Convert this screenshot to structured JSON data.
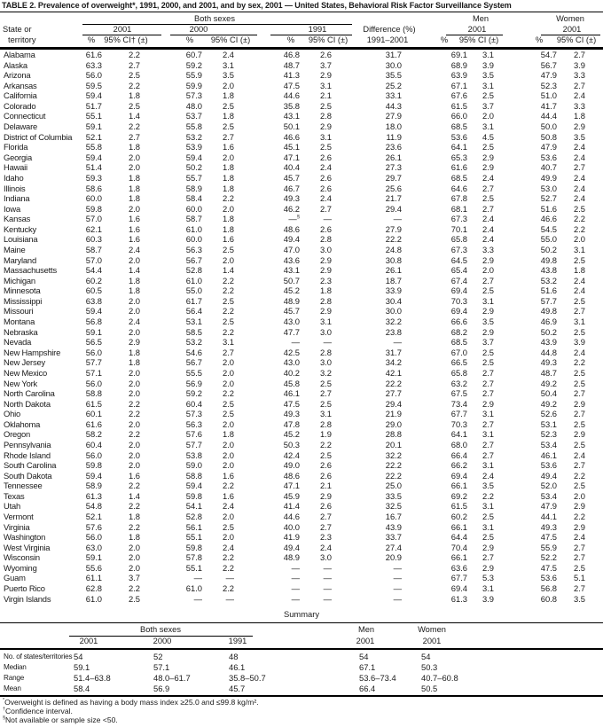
{
  "title": "TABLE 2. Prevalence of overweight*, 1991, 2000, and 2001, and by sex, 2001 — United States, Behavioral Risk Factor Surveillance System",
  "header": {
    "group_both": "Both sexes",
    "group_men": "Men",
    "group_women": "Women",
    "state_line1": "State or",
    "state_line2": "territory",
    "year_2001": "2001",
    "year_2000": "2000",
    "year_1991": "1991",
    "year_men": "2001",
    "year_women": "2001",
    "pct": "%",
    "ci_first": "95% CI† (±)",
    "ci": "95% CI (±)",
    "diff_line1": "Difference (%)",
    "diff_line2": "1991–2001"
  },
  "rows": [
    [
      "Alabama",
      "61.6",
      "2.2",
      "60.7",
      "2.4",
      "46.8",
      "2.6",
      "31.7",
      "69.1",
      "3.1",
      "54.7",
      "2.7"
    ],
    [
      "Alaska",
      "63.3",
      "2.7",
      "59.2",
      "3.1",
      "48.7",
      "3.7",
      "30.0",
      "68.9",
      "3.9",
      "56.7",
      "3.9"
    ],
    [
      "Arizona",
      "56.0",
      "2.5",
      "55.9",
      "3.5",
      "41.3",
      "2.9",
      "35.5",
      "63.9",
      "3.5",
      "47.9",
      "3.3"
    ],
    [
      "Arkansas",
      "59.5",
      "2.2",
      "59.9",
      "2.0",
      "47.5",
      "3.1",
      "25.2",
      "67.1",
      "3.1",
      "52.3",
      "2.7"
    ],
    [
      "California",
      "59.4",
      "1.8",
      "57.3",
      "1.8",
      "44.6",
      "2.1",
      "33.1",
      "67.6",
      "2.5",
      "51.0",
      "2.4"
    ],
    [
      "Colorado",
      "51.7",
      "2.5",
      "48.0",
      "2.5",
      "35.8",
      "2.5",
      "44.3",
      "61.5",
      "3.7",
      "41.7",
      "3.3"
    ],
    [
      "Connecticut",
      "55.1",
      "1.4",
      "53.7",
      "1.8",
      "43.1",
      "2.8",
      "27.9",
      "66.0",
      "2.0",
      "44.4",
      "1.8"
    ],
    [
      "Delaware",
      "59.1",
      "2.2",
      "55.8",
      "2.5",
      "50.1",
      "2.9",
      "18.0",
      "68.5",
      "3.1",
      "50.0",
      "2.9"
    ],
    [
      "District of Columbia",
      "52.1",
      "2.7",
      "53.2",
      "2.7",
      "46.6",
      "3.1",
      "11.9",
      "53.6",
      "4.5",
      "50.8",
      "3.5"
    ],
    [
      "Florida",
      "55.8",
      "1.8",
      "53.9",
      "1.6",
      "45.1",
      "2.5",
      "23.6",
      "64.1",
      "2.5",
      "47.9",
      "2.4"
    ],
    [
      "Georgia",
      "59.4",
      "2.0",
      "59.4",
      "2.0",
      "47.1",
      "2.6",
      "26.1",
      "65.3",
      "2.9",
      "53.6",
      "2.4"
    ],
    [
      "Hawaii",
      "51.4",
      "2.0",
      "50.2",
      "1.8",
      "40.4",
      "2.4",
      "27.3",
      "61.6",
      "2.9",
      "40.7",
      "2.7"
    ],
    [
      "Idaho",
      "59.3",
      "1.8",
      "55.7",
      "1.8",
      "45.7",
      "2.6",
      "29.7",
      "68.5",
      "2.4",
      "49.9",
      "2.4"
    ],
    [
      "Illinois",
      "58.6",
      "1.8",
      "58.9",
      "1.8",
      "46.7",
      "2.6",
      "25.6",
      "64.6",
      "2.7",
      "53.0",
      "2.4"
    ],
    [
      "Indiana",
      "60.0",
      "1.8",
      "58.4",
      "2.2",
      "49.3",
      "2.4",
      "21.7",
      "67.8",
      "2.5",
      "52.7",
      "2.4"
    ],
    [
      "Iowa",
      "59.8",
      "2.0",
      "60.0",
      "2.0",
      "46.2",
      "2.7",
      "29.4",
      "68.1",
      "2.7",
      "51.6",
      "2.5"
    ],
    [
      "Kansas",
      "57.0",
      "1.6",
      "58.7",
      "1.8",
      "—§",
      "—",
      "—",
      "67.3",
      "2.4",
      "46.6",
      "2.2"
    ],
    [
      "Kentucky",
      "62.1",
      "1.6",
      "61.0",
      "1.8",
      "48.6",
      "2.6",
      "27.9",
      "70.1",
      "2.4",
      "54.5",
      "2.2"
    ],
    [
      "Louisiana",
      "60.3",
      "1.6",
      "60.0",
      "1.6",
      "49.4",
      "2.8",
      "22.2",
      "65.8",
      "2.4",
      "55.0",
      "2.0"
    ],
    [
      "Maine",
      "58.7",
      "2.4",
      "56.3",
      "2.5",
      "47.0",
      "3.0",
      "24.8",
      "67.3",
      "3.3",
      "50.2",
      "3.1"
    ],
    [
      "Maryland",
      "57.0",
      "2.0",
      "56.7",
      "2.0",
      "43.6",
      "2.9",
      "30.8",
      "64.5",
      "2.9",
      "49.8",
      "2.5"
    ],
    [
      "Massachusetts",
      "54.4",
      "1.4",
      "52.8",
      "1.4",
      "43.1",
      "2.9",
      "26.1",
      "65.4",
      "2.0",
      "43.8",
      "1.8"
    ],
    [
      "Michigan",
      "60.2",
      "1.8",
      "61.0",
      "2.2",
      "50.7",
      "2.3",
      "18.7",
      "67.4",
      "2.7",
      "53.2",
      "2.4"
    ],
    [
      "Minnesota",
      "60.5",
      "1.8",
      "55.0",
      "2.2",
      "45.2",
      "1.8",
      "33.9",
      "69.4",
      "2.5",
      "51.6",
      "2.4"
    ],
    [
      "Mississippi",
      "63.8",
      "2.0",
      "61.7",
      "2.5",
      "48.9",
      "2.8",
      "30.4",
      "70.3",
      "3.1",
      "57.7",
      "2.5"
    ],
    [
      "Missouri",
      "59.4",
      "2.0",
      "56.4",
      "2.2",
      "45.7",
      "2.9",
      "30.0",
      "69.4",
      "2.9",
      "49.8",
      "2.7"
    ],
    [
      "Montana",
      "56.8",
      "2.4",
      "53.1",
      "2.5",
      "43.0",
      "3.1",
      "32.2",
      "66.6",
      "3.5",
      "46.9",
      "3.1"
    ],
    [
      "Nebraska",
      "59.1",
      "2.0",
      "58.5",
      "2.2",
      "47.7",
      "3.0",
      "23.8",
      "68.2",
      "2.9",
      "50.2",
      "2.5"
    ],
    [
      "Nevada",
      "56.5",
      "2.9",
      "53.2",
      "3.1",
      "—",
      "—",
      "—",
      "68.5",
      "3.7",
      "43.9",
      "3.9"
    ],
    [
      "New Hampshire",
      "56.0",
      "1.8",
      "54.6",
      "2.7",
      "42.5",
      "2.8",
      "31.7",
      "67.0",
      "2.5",
      "44.8",
      "2.4"
    ],
    [
      "New Jersey",
      "57.7",
      "1.8",
      "56.7",
      "2.0",
      "43.0",
      "3.0",
      "34.2",
      "66.5",
      "2.5",
      "49.3",
      "2.2"
    ],
    [
      "New Mexico",
      "57.1",
      "2.0",
      "55.5",
      "2.0",
      "40.2",
      "3.2",
      "42.1",
      "65.8",
      "2.7",
      "48.7",
      "2.5"
    ],
    [
      "New York",
      "56.0",
      "2.0",
      "56.9",
      "2.0",
      "45.8",
      "2.5",
      "22.2",
      "63.2",
      "2.7",
      "49.2",
      "2.5"
    ],
    [
      "North Carolina",
      "58.8",
      "2.0",
      "59.2",
      "2.2",
      "46.1",
      "2.7",
      "27.7",
      "67.5",
      "2.7",
      "50.4",
      "2.7"
    ],
    [
      "North Dakota",
      "61.5",
      "2.2",
      "60.4",
      "2.5",
      "47.5",
      "2.5",
      "29.4",
      "73.4",
      "2.9",
      "49.2",
      "2.9"
    ],
    [
      "Ohio",
      "60.1",
      "2.2",
      "57.3",
      "2.5",
      "49.3",
      "3.1",
      "21.9",
      "67.7",
      "3.1",
      "52.6",
      "2.7"
    ],
    [
      "Oklahoma",
      "61.6",
      "2.0",
      "56.3",
      "2.0",
      "47.8",
      "2.8",
      "29.0",
      "70.3",
      "2.7",
      "53.1",
      "2.5"
    ],
    [
      "Oregon",
      "58.2",
      "2.2",
      "57.6",
      "1.8",
      "45.2",
      "1.9",
      "28.8",
      "64.1",
      "3.1",
      "52.3",
      "2.9"
    ],
    [
      "Pennsylvania",
      "60.4",
      "2.0",
      "57.7",
      "2.0",
      "50.3",
      "2.2",
      "20.1",
      "68.0",
      "2.7",
      "53.4",
      "2.5"
    ],
    [
      "Rhode Island",
      "56.0",
      "2.0",
      "53.8",
      "2.0",
      "42.4",
      "2.5",
      "32.2",
      "66.4",
      "2.7",
      "46.1",
      "2.4"
    ],
    [
      "South Carolina",
      "59.8",
      "2.0",
      "59.0",
      "2.0",
      "49.0",
      "2.6",
      "22.2",
      "66.2",
      "3.1",
      "53.6",
      "2.7"
    ],
    [
      "South Dakota",
      "59.4",
      "1.6",
      "58.8",
      "1.6",
      "48.6",
      "2.6",
      "22.2",
      "69.4",
      "2.4",
      "49.4",
      "2.2"
    ],
    [
      "Tennessee",
      "58.9",
      "2.2",
      "59.4",
      "2.2",
      "47.1",
      "2.1",
      "25.0",
      "66.1",
      "3.5",
      "52.0",
      "2.5"
    ],
    [
      "Texas",
      "61.3",
      "1.4",
      "59.8",
      "1.6",
      "45.9",
      "2.9",
      "33.5",
      "69.2",
      "2.2",
      "53.4",
      "2.0"
    ],
    [
      "Utah",
      "54.8",
      "2.2",
      "54.1",
      "2.4",
      "41.4",
      "2.6",
      "32.5",
      "61.5",
      "3.1",
      "47.9",
      "2.9"
    ],
    [
      "Vermont",
      "52.1",
      "1.8",
      "52.8",
      "2.0",
      "44.6",
      "2.7",
      "16.7",
      "60.2",
      "2.5",
      "44.1",
      "2.2"
    ],
    [
      "Virginia",
      "57.6",
      "2.2",
      "56.1",
      "2.5",
      "40.0",
      "2.7",
      "43.9",
      "66.1",
      "3.1",
      "49.3",
      "2.9"
    ],
    [
      "Washington",
      "56.0",
      "1.8",
      "55.1",
      "2.0",
      "41.9",
      "2.3",
      "33.7",
      "64.4",
      "2.5",
      "47.5",
      "2.4"
    ],
    [
      "West Virginia",
      "63.0",
      "2.0",
      "59.8",
      "2.4",
      "49.4",
      "2.4",
      "27.4",
      "70.4",
      "2.9",
      "55.9",
      "2.7"
    ],
    [
      "Wisconsin",
      "59.1",
      "2.0",
      "57.8",
      "2.2",
      "48.9",
      "3.0",
      "20.9",
      "66.1",
      "2.7",
      "52.2",
      "2.7"
    ],
    [
      "Wyoming",
      "55.6",
      "2.0",
      "55.1",
      "2.2",
      "—",
      "—",
      "—",
      "63.6",
      "2.9",
      "47.5",
      "2.5"
    ],
    [
      "Guam",
      "61.1",
      "3.7",
      "—",
      "—",
      "—",
      "—",
      "—",
      "67.7",
      "5.3",
      "53.6",
      "5.1"
    ],
    [
      "Puerto Rico",
      "62.8",
      "2.2",
      "61.0",
      "2.2",
      "—",
      "—",
      "—",
      "69.4",
      "3.1",
      "56.8",
      "2.7"
    ],
    [
      "Virgin Islands",
      "61.0",
      "2.5",
      "—",
      "—",
      "—",
      "—",
      "—",
      "61.3",
      "3.9",
      "60.8",
      "3.5"
    ]
  ],
  "summary": {
    "title": "Summary",
    "group_both": "Both sexes",
    "group_men": "Men",
    "group_women": "Women",
    "year_2001": "2001",
    "year_2000": "2000",
    "year_1991": "1991",
    "year_men": "2001",
    "year_women": "2001",
    "rows": [
      [
        "No. of states/territories",
        "54",
        "52",
        "48",
        "54",
        "54"
      ],
      [
        "Median",
        "59.1",
        "57.1",
        "46.1",
        "67.1",
        "50.3"
      ],
      [
        "Range",
        "51.4–63.8",
        "48.0–61.7",
        "35.8–50.7",
        "53.6–73.4",
        "40.7–60.8"
      ],
      [
        "Mean",
        "58.4",
        "56.9",
        "45.7",
        "66.4",
        "50.5"
      ]
    ]
  },
  "footnotes": [
    {
      "marker": "*",
      "text": "Overweight is defined as having a body mass index ≥25.0 and ≤99.8 kg/m²."
    },
    {
      "marker": "†",
      "text": "Confidence interval."
    },
    {
      "marker": "§",
      "text": "Not available or sample size <50."
    }
  ]
}
